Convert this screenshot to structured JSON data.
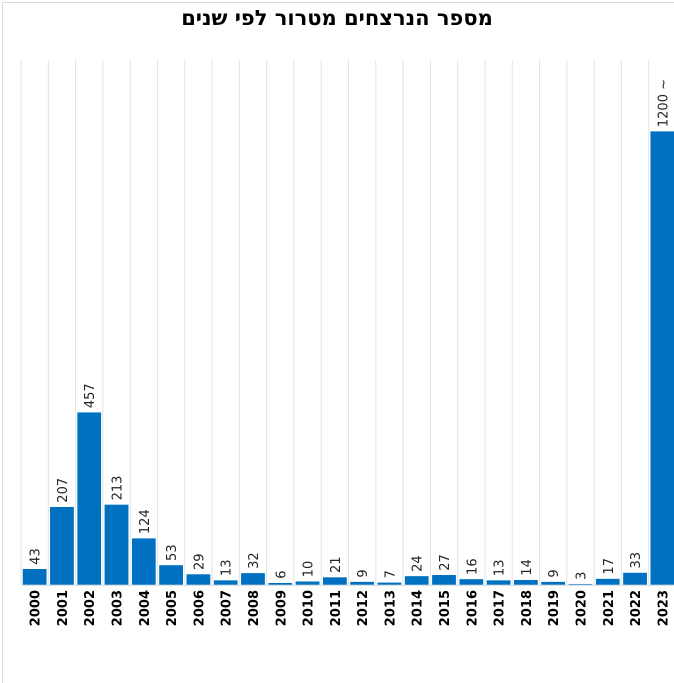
{
  "chart_data": {
    "type": "bar",
    "title": "מספר הנרצחים מטרור לפי שנים",
    "xlabel": "",
    "ylabel": "",
    "categories": [
      "2000",
      "2001",
      "2002",
      "2003",
      "2004",
      "2005",
      "2006",
      "2007",
      "2008",
      "2009",
      "2010",
      "2011",
      "2012",
      "2013",
      "2014",
      "2015",
      "2016",
      "2017",
      "2018",
      "2019",
      "2020",
      "2021",
      "2022",
      "2023"
    ],
    "values": [
      43,
      207,
      457,
      213,
      124,
      53,
      29,
      13,
      32,
      6,
      10,
      21,
      9,
      7,
      24,
      27,
      16,
      13,
      14,
      9,
      3,
      17,
      33,
      1200
    ],
    "data_labels": [
      "43",
      "207",
      "457",
      "213",
      "124",
      "53",
      "29",
      "13",
      "32",
      "6",
      "10",
      "21",
      "9",
      "7",
      "24",
      "27",
      "16",
      "13",
      "14",
      "9",
      "3",
      "17",
      "33",
      "1200 ~"
    ],
    "ylim": [
      0,
      1388
    ],
    "grid": "vertical",
    "legend": "none",
    "bar_color": "#0070c0"
  }
}
